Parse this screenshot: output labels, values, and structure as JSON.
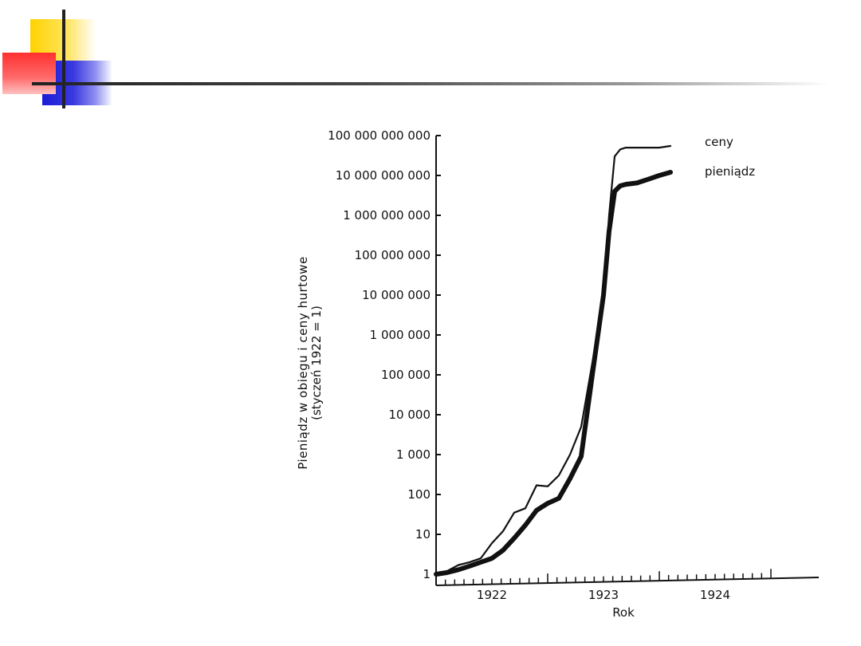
{
  "slide": {
    "decoration": {
      "colors": {
        "yellow": "#ffd200",
        "red": "#ff3030",
        "blue": "#1c1cd8",
        "line": "#222222"
      }
    }
  },
  "chart_data": {
    "type": "line",
    "title": "",
    "xlabel": "Rok",
    "ylabel_line1": "Pieniądz w obiegu i ceny hurtowe",
    "ylabel_line2": "(styczeń 1922 = 1)",
    "yscale": "log",
    "ylim": [
      1,
      100000000000
    ],
    "y_ticks": [
      {
        "value": 1,
        "label": "1"
      },
      {
        "value": 10,
        "label": "10"
      },
      {
        "value": 100,
        "label": "100"
      },
      {
        "value": 1000,
        "label": "1 000"
      },
      {
        "value": 10000,
        "label": "10 000"
      },
      {
        "value": 100000,
        "label": "100 000"
      },
      {
        "value": 1000000,
        "label": "1 000 000"
      },
      {
        "value": 10000000,
        "label": "10 000 000"
      },
      {
        "value": 100000000,
        "label": "100 000 000"
      },
      {
        "value": 1000000000,
        "label": "1 000 000 000"
      },
      {
        "value": 10000000000,
        "label": "10 000 000 000"
      },
      {
        "value": 100000000000,
        "label": "100 000 000 000"
      }
    ],
    "x_ticks": [
      "1922",
      "1923",
      "1924"
    ],
    "xlim": [
      1922.0,
      1924.9
    ],
    "grid": false,
    "series": [
      {
        "name": "ceny",
        "color": "#111111",
        "weight": "thin",
        "x": [
          1922.0,
          1922.1,
          1922.2,
          1922.3,
          1922.4,
          1922.5,
          1922.6,
          1922.7,
          1922.8,
          1922.9,
          1923.0,
          1923.1,
          1923.2,
          1923.3,
          1923.4,
          1923.5,
          1923.55,
          1923.6,
          1923.65,
          1923.7,
          1923.8,
          1924.0,
          1924.1
        ],
        "y": [
          1,
          1.2,
          1.7,
          2,
          2.5,
          6,
          12,
          35,
          45,
          170,
          160,
          300,
          1000,
          5000,
          200000,
          10000000,
          1000000000,
          30000000000,
          45000000000,
          50000000000,
          50000000000,
          50000000000,
          55000000000
        ]
      },
      {
        "name": "pieniądz",
        "color": "#111111",
        "weight": "thick",
        "x": [
          1922.0,
          1922.1,
          1922.2,
          1922.3,
          1922.4,
          1922.5,
          1922.6,
          1922.7,
          1922.8,
          1922.9,
          1923.0,
          1923.1,
          1923.2,
          1923.3,
          1923.4,
          1923.5,
          1923.55,
          1923.6,
          1923.65,
          1923.7,
          1923.8,
          1923.9,
          1924.0,
          1924.1
        ],
        "y": [
          1,
          1.1,
          1.3,
          1.6,
          2,
          2.5,
          4,
          8,
          17,
          40,
          60,
          80,
          250,
          900,
          100000,
          10000000,
          400000000,
          4000000000,
          5500000000,
          6000000000,
          6500000000,
          8000000000,
          10000000000,
          12000000000
        ]
      }
    ]
  }
}
